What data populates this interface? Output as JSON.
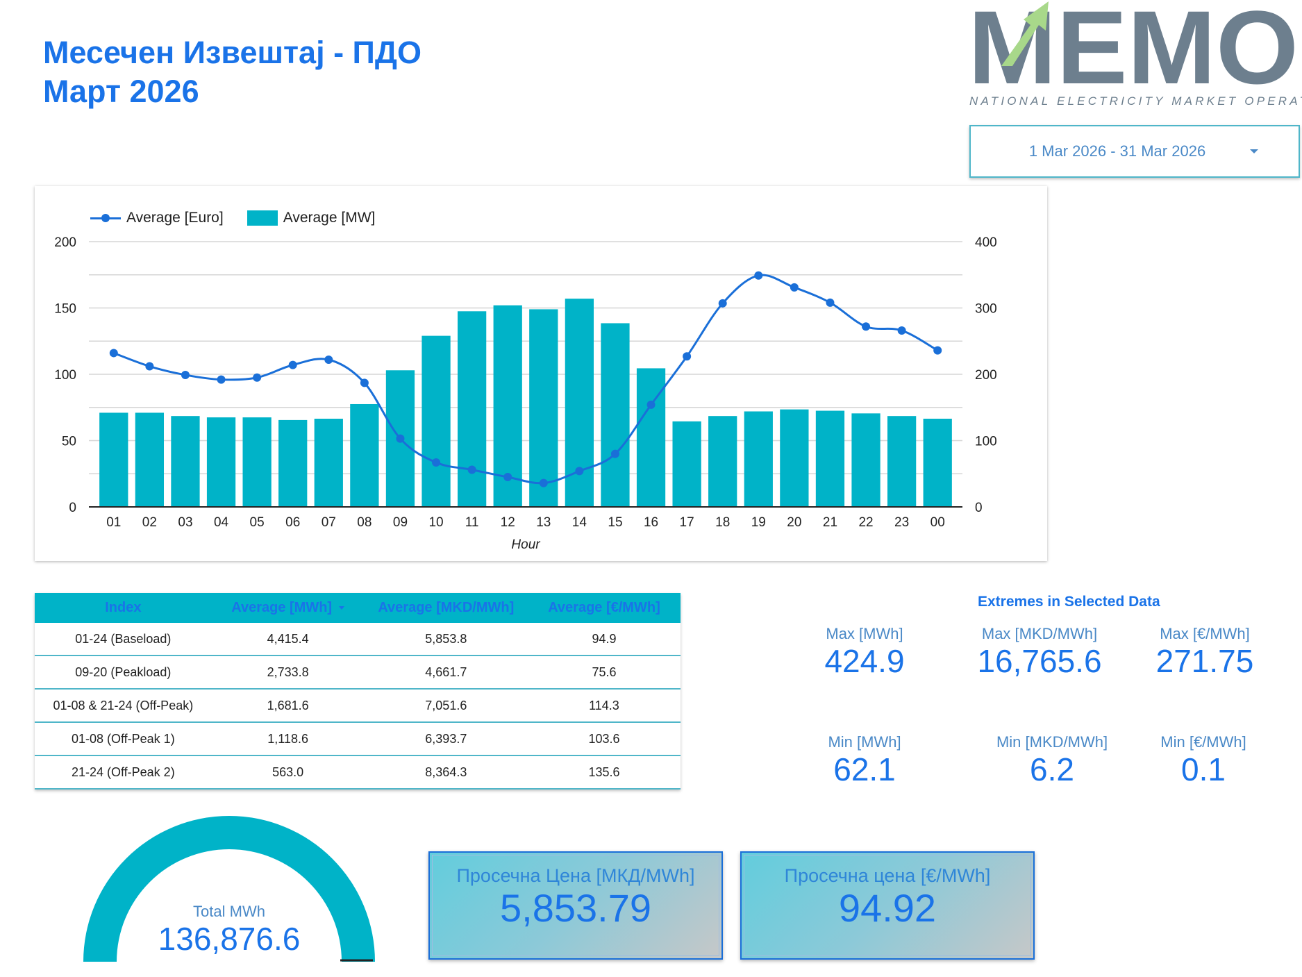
{
  "header": {
    "title_line1": "Месечен Извештај - ПДО",
    "title_line2": "Март 2026"
  },
  "logo": {
    "name": "MEMO",
    "subtitle": "NATIONAL ELECTRICITY MARKET OPERATOR",
    "colors": {
      "letters": "#6d7f8e",
      "arrow": "#a8d88a"
    }
  },
  "date_range": {
    "label": "1 Mar 2026 - 31 Mar 2026"
  },
  "colors": {
    "accent": "#1a73e8",
    "bar": "#00b3c8",
    "line": "#1a6fd8",
    "gauge_track": "#00b3c8"
  },
  "chart_legend": {
    "line_series": "Average [Euro]",
    "bar_series": "Average [MW]"
  },
  "chart_data": {
    "type": "bar",
    "xlabel": "Hour",
    "categories": [
      "01",
      "02",
      "03",
      "04",
      "05",
      "06",
      "07",
      "08",
      "09",
      "10",
      "11",
      "12",
      "13",
      "14",
      "15",
      "16",
      "17",
      "18",
      "19",
      "20",
      "21",
      "22",
      "23",
      "00"
    ],
    "series": [
      {
        "name": "Average [MW]",
        "type": "bar",
        "axis": "right",
        "values": [
          142,
          142,
          137,
          135,
          135,
          131,
          133,
          155,
          206,
          258,
          295,
          304,
          298,
          314,
          277,
          209,
          129,
          137,
          144,
          147,
          145,
          141,
          137,
          133
        ]
      },
      {
        "name": "Average [Euro]",
        "type": "line",
        "axis": "left",
        "values": [
          116,
          106,
          99.5,
          96,
          97.5,
          107,
          111,
          93.5,
          51.5,
          33.5,
          28,
          22.5,
          18,
          27,
          40,
          77,
          113.5,
          153.5,
          174.5,
          165.5,
          154,
          136,
          133,
          118
        ]
      }
    ],
    "y_left": {
      "range": [
        0,
        200
      ],
      "ticks": [
        "0",
        "50",
        "100",
        "150",
        "200"
      ]
    },
    "y_right": {
      "range": [
        0,
        400
      ],
      "ticks": [
        "0",
        "100",
        "200",
        "300",
        "400"
      ]
    },
    "grid": true,
    "legend_position": "top-left"
  },
  "index_table": {
    "columns": [
      "Index",
      "Average [MWh]",
      "Average [MKD/MWh]",
      "Average [€/MWh]"
    ],
    "rows": [
      [
        "01-24 (Baseload)",
        "4,415.4",
        "5,853.8",
        "94.9"
      ],
      [
        "09-20 (Peakload)",
        "2,733.8",
        "4,661.7",
        "75.6"
      ],
      [
        "01-08 & 21-24 (Off-Peak)",
        "1,681.6",
        "7,051.6",
        "114.3"
      ],
      [
        "01-08 (Off-Peak 1)",
        "1,118.6",
        "6,393.7",
        "103.6"
      ],
      [
        "21-24 (Off-Peak 2)",
        "563.0",
        "8,364.3",
        "135.6"
      ]
    ]
  },
  "extremes": {
    "title": "Extremes in Selected Data",
    "max_mwh": {
      "label": "Max [MWh]",
      "value": "424.9"
    },
    "max_mkd": {
      "label": "Max [MKD/MWh]",
      "value": "16,765.6"
    },
    "max_eur": {
      "label": "Max [€/MWh]",
      "value": "271.75"
    },
    "min_mwh": {
      "label": "Min [MWh]",
      "value": "62.1"
    },
    "min_mkd": {
      "label": "Min [MKD/MWh]",
      "value": "6.2"
    },
    "min_eur": {
      "label": "Min [€/MWh]",
      "value": "0.1"
    }
  },
  "gauge": {
    "label": "Total MWh",
    "value": "136,876.6",
    "fraction": 1.0
  },
  "price_mkd": {
    "label": "Просечна Цена [МКД/MWh]",
    "value": "5,853.79"
  },
  "price_eur": {
    "label": "Просечна цена [€/MWh]",
    "value": "94.92"
  }
}
